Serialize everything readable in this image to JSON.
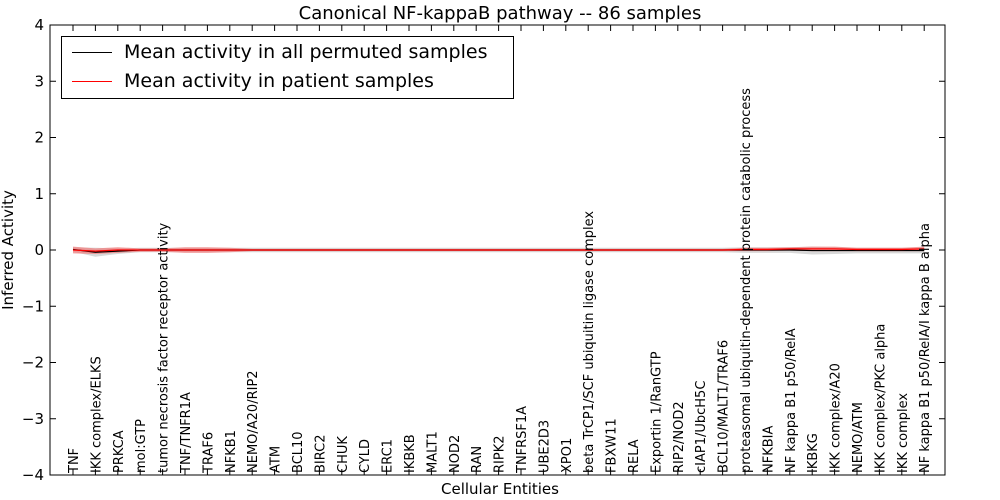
{
  "chart_data": {
    "type": "line",
    "title": "Canonical NF-kappaB pathway -- 86 samples",
    "xlabel": "Cellular Entities",
    "ylabel": "Inferred Activity",
    "ylim": [
      -4,
      4
    ],
    "yticks": [
      "−4",
      "−3",
      "−2",
      "−1",
      "0",
      "1",
      "2",
      "3",
      "4"
    ],
    "grid": false,
    "legend_position": "top-left",
    "categories": [
      "TNF",
      "IKK complex/ELKS",
      "PRKCA",
      "mol:GTP",
      "tumor necrosis factor receptor activity",
      "TNF/TNFR1A",
      "TRAF6",
      "NFKB1",
      "NEMO/A20/RIP2",
      "ATM",
      "BCL10",
      "BIRC2",
      "CHUK",
      "CYLD",
      "ERC1",
      "IKBKB",
      "MALT1",
      "NOD2",
      "RAN",
      "RIPK2",
      "TNFRSF1A",
      "UBE2D3",
      "XPO1",
      "beta TrCP1/SCF ubiquitin ligase complex",
      "FBXW11",
      "RELA",
      "Exportin 1/RanGTP",
      "RIP2/NOD2",
      "cIAP1/UbcH5C",
      "BCL10/MALT1/TRAF6",
      "proteasomal ubiquitin-dependent protein catabolic process",
      "NFKBIA",
      "NF kappa B1 p50/RelA",
      "IKBKG",
      "IKK complex/A20",
      "NEMO/ATM",
      "IKK complex/PKC alpha",
      "IKK complex",
      "NF kappa B1 p50/RelA/I kappa B alpha"
    ],
    "series": [
      {
        "name": "Mean activity in all permuted samples",
        "color": "#000000",
        "band_color": "#c8c8c8",
        "values": [
          0.01,
          -0.04,
          -0.02,
          0.0,
          0.0,
          0.0,
          0.0,
          0.0,
          0.0,
          0.0,
          0.0,
          0.0,
          0.0,
          0.0,
          0.0,
          0.0,
          0.0,
          0.0,
          0.0,
          0.0,
          0.0,
          0.0,
          0.0,
          0.0,
          0.0,
          0.0,
          0.0,
          0.0,
          0.0,
          0.0,
          0.0,
          0.0,
          0.0,
          -0.01,
          -0.01,
          -0.01,
          -0.01,
          -0.01,
          -0.01
        ],
        "band": [
          0.04,
          0.08,
          0.05,
          0.04,
          0.04,
          0.04,
          0.04,
          0.04,
          0.04,
          0.04,
          0.04,
          0.04,
          0.04,
          0.04,
          0.04,
          0.04,
          0.04,
          0.04,
          0.04,
          0.04,
          0.04,
          0.04,
          0.04,
          0.04,
          0.04,
          0.04,
          0.04,
          0.04,
          0.04,
          0.04,
          0.05,
          0.05,
          0.05,
          0.07,
          0.06,
          0.05,
          0.05,
          0.05,
          0.05
        ]
      },
      {
        "name": "Mean activity in patient samples",
        "color": "#ff0000",
        "band_color": "#f08080",
        "values": [
          0.0,
          -0.02,
          0.0,
          0.0,
          0.0,
          0.0,
          0.0,
          0.0,
          0.0,
          0.0,
          0.0,
          0.0,
          0.0,
          0.0,
          0.0,
          0.0,
          0.0,
          0.0,
          0.0,
          0.0,
          0.0,
          0.0,
          0.0,
          0.0,
          0.0,
          0.0,
          0.0,
          0.0,
          0.0,
          0.0,
          0.01,
          0.01,
          0.02,
          0.02,
          0.02,
          0.01,
          0.01,
          0.01,
          0.02
        ],
        "band": [
          0.06,
          0.05,
          0.05,
          0.03,
          0.03,
          0.05,
          0.05,
          0.04,
          0.02,
          0.02,
          0.02,
          0.02,
          0.02,
          0.02,
          0.02,
          0.02,
          0.02,
          0.02,
          0.02,
          0.02,
          0.02,
          0.02,
          0.02,
          0.02,
          0.02,
          0.02,
          0.02,
          0.02,
          0.02,
          0.02,
          0.03,
          0.03,
          0.03,
          0.04,
          0.04,
          0.03,
          0.03,
          0.03,
          0.04
        ]
      }
    ]
  }
}
